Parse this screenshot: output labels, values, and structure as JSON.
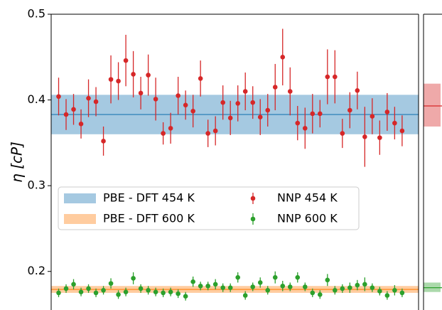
{
  "chart_data": {
    "type": "scatter",
    "ylabel": "η [cP]",
    "ylim": [
      0.155,
      0.5
    ],
    "yticks": [
      0.2,
      0.3,
      0.4,
      0.5
    ],
    "xlim": [
      0,
      49.2
    ],
    "x": [
      1,
      2,
      3,
      4,
      5,
      6,
      7,
      8,
      9,
      10,
      11,
      12,
      13,
      14,
      15,
      16,
      17,
      18,
      19,
      20,
      21,
      22,
      23,
      24,
      25,
      26,
      27,
      28,
      29,
      30,
      31,
      32,
      33,
      34,
      35,
      36,
      37,
      38,
      39,
      40,
      41,
      42,
      43,
      44,
      45,
      46,
      47
    ],
    "bands": [
      {
        "name": "PBE - DFT 454 K",
        "color": "#1f77b4",
        "low": 0.36,
        "center": 0.383,
        "high": 0.406
      },
      {
        "name": "PBE - DFT 600 K",
        "color": "#ff7f0e",
        "low": 0.175,
        "center": 0.179,
        "high": 0.183
      }
    ],
    "series": [
      {
        "name": "NNP 454 K",
        "color": "#d62728",
        "values": [
          0.404,
          0.383,
          0.389,
          0.372,
          0.402,
          0.398,
          0.352,
          0.424,
          0.422,
          0.446,
          0.43,
          0.408,
          0.429,
          0.401,
          0.361,
          0.367,
          0.405,
          0.394,
          0.387,
          0.425,
          0.361,
          0.364,
          0.397,
          0.379,
          0.396,
          0.41,
          0.397,
          0.38,
          0.388,
          0.415,
          0.45,
          0.41,
          0.373,
          0.367,
          0.384,
          0.384,
          0.427,
          0.427,
          0.361,
          0.388,
          0.411,
          0.357,
          0.381,
          0.356,
          0.386,
          0.373,
          0.364
        ],
        "errors": [
          0.022,
          0.018,
          0.018,
          0.017,
          0.022,
          0.017,
          0.017,
          0.028,
          0.022,
          0.03,
          0.027,
          0.019,
          0.024,
          0.025,
          0.013,
          0.018,
          0.022,
          0.017,
          0.019,
          0.021,
          0.016,
          0.017,
          0.02,
          0.02,
          0.021,
          0.022,
          0.019,
          0.021,
          0.019,
          0.027,
          0.033,
          0.028,
          0.02,
          0.024,
          0.023,
          0.016,
          0.032,
          0.031,
          0.017,
          0.021,
          0.022,
          0.035,
          0.021,
          0.02,
          0.022,
          0.019,
          0.018
        ],
        "mean_low": 0.369,
        "mean": 0.393,
        "mean_high": 0.419
      },
      {
        "name": "NNP 600 K",
        "color": "#2ca02c",
        "values": [
          0.175,
          0.18,
          0.185,
          0.176,
          0.18,
          0.175,
          0.178,
          0.186,
          0.173,
          0.176,
          0.192,
          0.18,
          0.178,
          0.176,
          0.175,
          0.176,
          0.174,
          0.171,
          0.188,
          0.183,
          0.183,
          0.185,
          0.181,
          0.181,
          0.193,
          0.172,
          0.182,
          0.187,
          0.178,
          0.193,
          0.183,
          0.182,
          0.193,
          0.182,
          0.175,
          0.173,
          0.19,
          0.178,
          0.18,
          0.181,
          0.184,
          0.185,
          0.181,
          0.177,
          0.172,
          0.178,
          0.175
        ],
        "errors": [
          0.005,
          0.005,
          0.006,
          0.005,
          0.005,
          0.005,
          0.005,
          0.006,
          0.005,
          0.005,
          0.007,
          0.005,
          0.005,
          0.005,
          0.005,
          0.005,
          0.005,
          0.005,
          0.006,
          0.005,
          0.005,
          0.006,
          0.005,
          0.005,
          0.006,
          0.005,
          0.005,
          0.006,
          0.005,
          0.007,
          0.006,
          0.005,
          0.006,
          0.005,
          0.005,
          0.005,
          0.007,
          0.005,
          0.005,
          0.006,
          0.006,
          0.008,
          0.005,
          0.005,
          0.005,
          0.006,
          0.005
        ],
        "mean_low": 0.176,
        "mean": 0.181,
        "mean_high": 0.187
      }
    ]
  }
}
